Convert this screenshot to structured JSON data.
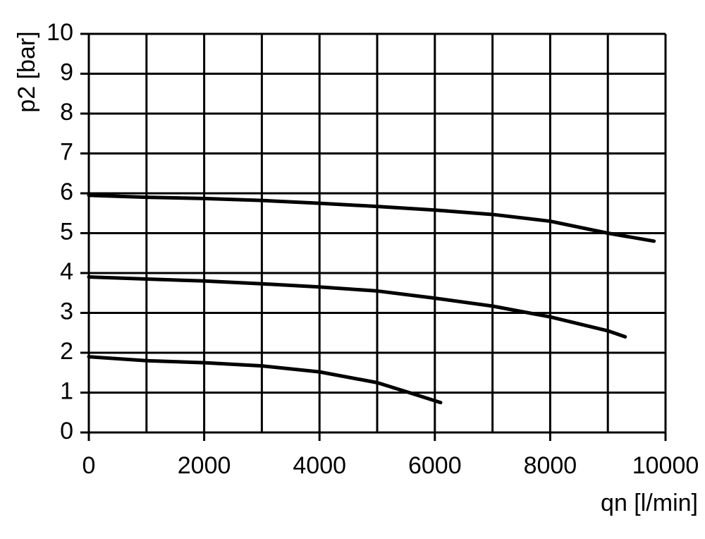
{
  "chart_data": {
    "type": "line",
    "x_label": "qn [l/min]",
    "y_label": "p2 [bar]",
    "xlim": [
      0,
      10000
    ],
    "ylim": [
      0,
      10
    ],
    "xticks": [
      0,
      2000,
      4000,
      6000,
      8000,
      10000
    ],
    "xminorticks": [
      1000,
      3000,
      5000,
      7000,
      9000
    ],
    "yticks": [
      0,
      1,
      2,
      3,
      4,
      5,
      6,
      7,
      8,
      9,
      10
    ],
    "grid": true,
    "series": [
      {
        "color": "#000000",
        "x": [
          0,
          1000,
          2000,
          3000,
          4000,
          5000,
          6000,
          7000,
          8000,
          9000,
          9800
        ],
        "values": [
          5.95,
          5.9,
          5.87,
          5.82,
          5.75,
          5.67,
          5.58,
          5.47,
          5.3,
          5.0,
          4.8
        ]
      },
      {
        "color": "#000000",
        "x": [
          0,
          1000,
          2000,
          3000,
          4000,
          5000,
          6000,
          7000,
          8000,
          9000,
          9300
        ],
        "values": [
          3.9,
          3.85,
          3.8,
          3.73,
          3.65,
          3.55,
          3.37,
          3.17,
          2.9,
          2.55,
          2.4
        ]
      },
      {
        "color": "#000000",
        "x": [
          0,
          1000,
          2000,
          3000,
          4000,
          5000,
          5600,
          6100
        ],
        "values": [
          1.9,
          1.8,
          1.75,
          1.67,
          1.52,
          1.25,
          0.98,
          0.75
        ]
      }
    ]
  }
}
